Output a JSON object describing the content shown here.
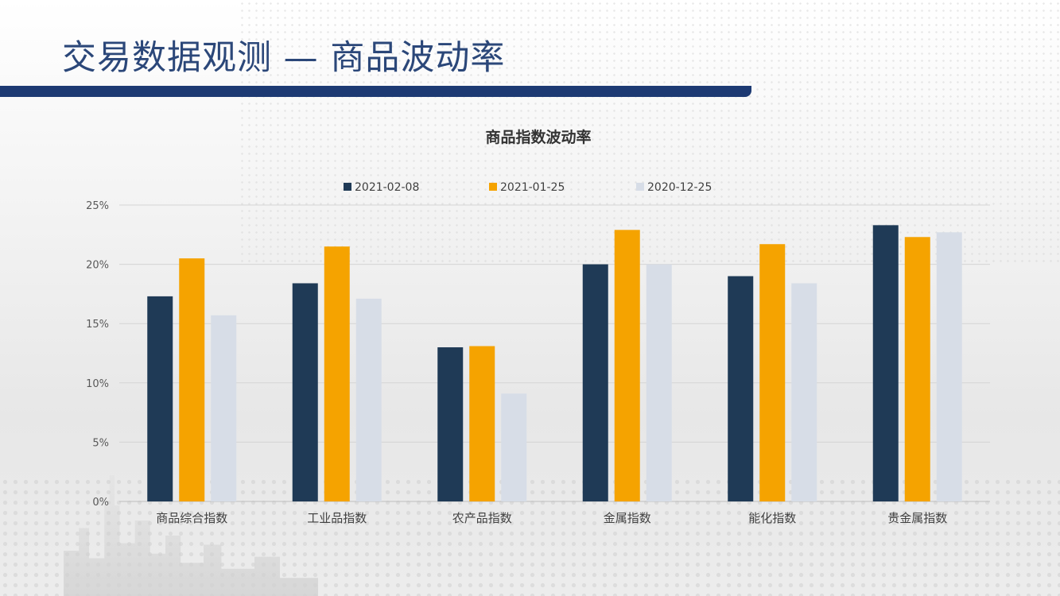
{
  "page": {
    "title": "交易数据观测 — 商品波动率"
  },
  "colors": {
    "header_bar": "#1d3a73",
    "title_text": "#2b4779",
    "series": [
      "#1f3a56",
      "#f5a300",
      "#d7dde7"
    ],
    "grid": "#d4d4d4",
    "text": "#404040"
  },
  "chart_data": {
    "type": "bar",
    "title": "商品指数波动率",
    "categories": [
      "商品综合指数",
      "工业品指数",
      "农产品指数",
      "金属指数",
      "能化指数",
      "贵金属指数"
    ],
    "series": [
      {
        "name": "2021-02-08",
        "values": [
          17.3,
          18.4,
          13.0,
          20.0,
          19.0,
          23.3
        ]
      },
      {
        "name": "2021-01-25",
        "values": [
          20.5,
          21.5,
          13.1,
          22.9,
          21.7,
          22.3
        ]
      },
      {
        "name": "2020-12-25",
        "values": [
          15.7,
          17.1,
          9.1,
          20.0,
          18.4,
          22.7
        ]
      }
    ],
    "ylim": [
      0,
      25
    ],
    "yticks": [
      0,
      5,
      10,
      15,
      20,
      25
    ],
    "ytick_labels": [
      "0%",
      "5%",
      "10%",
      "15%",
      "20%",
      "25%"
    ],
    "grid": true,
    "legend": "top"
  }
}
